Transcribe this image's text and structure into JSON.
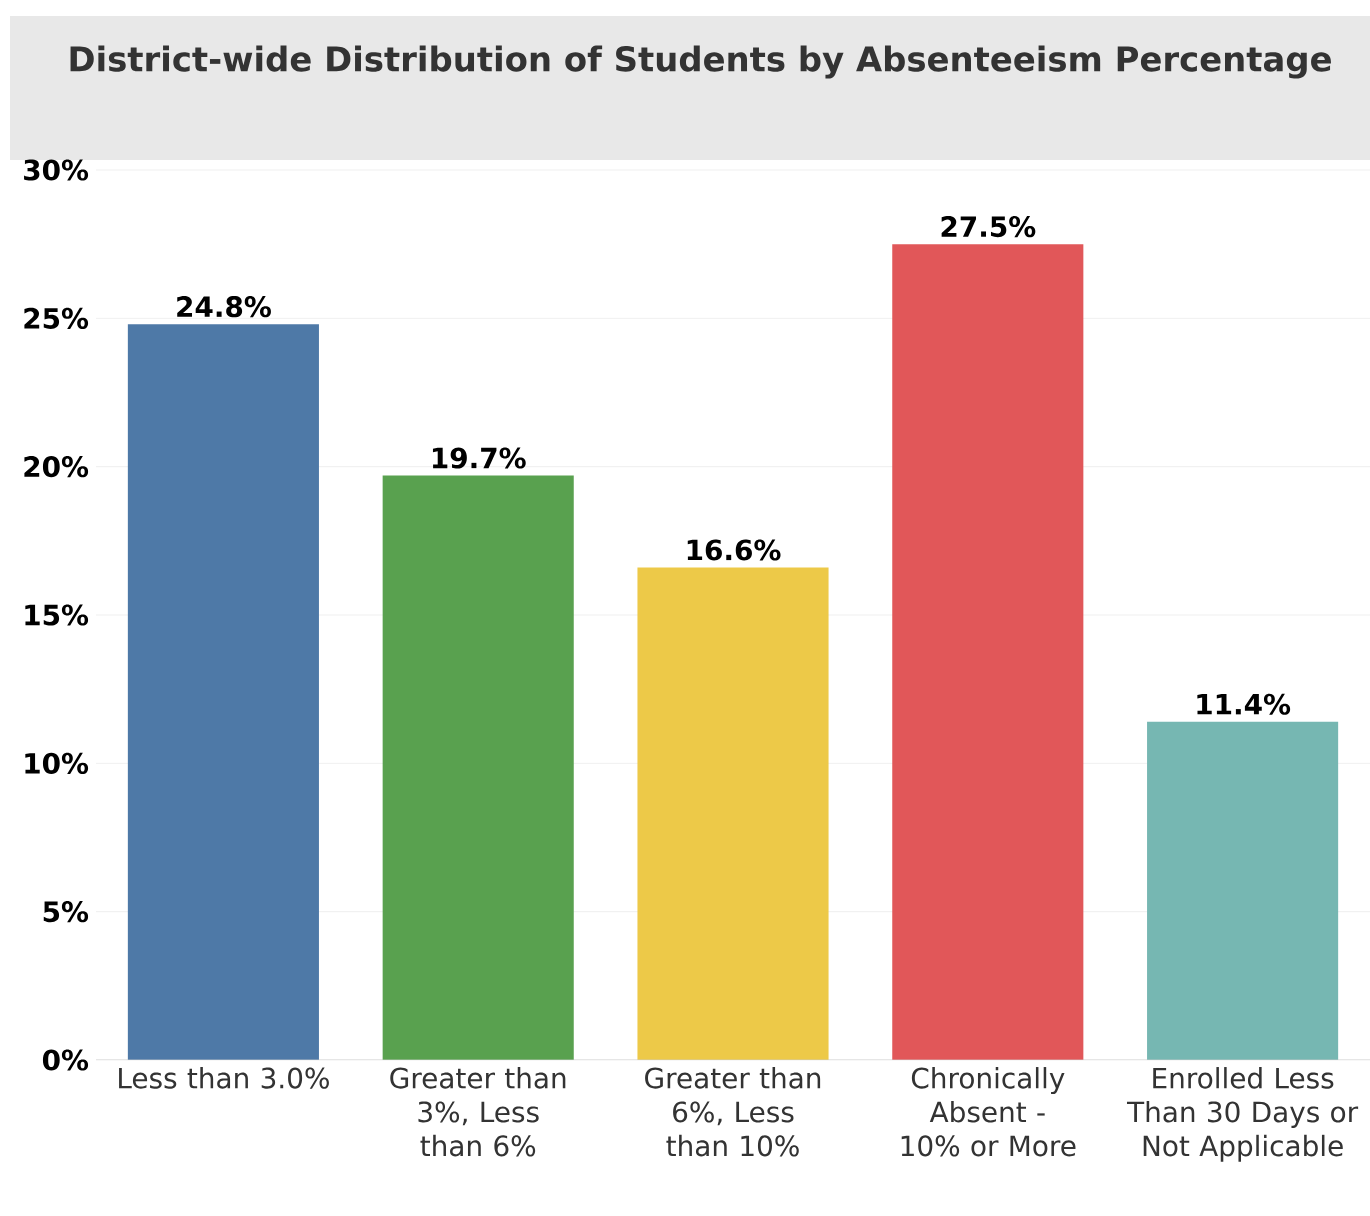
{
  "chart_data": {
    "type": "bar",
    "title": "District-wide Distribution of Students by Absenteeism Percentage",
    "categories": [
      "Less than 3.0%",
      "Greater than 3%, Less than 6%",
      "Greater than 6%, Less than 10%",
      "Chronically Absent - 10% or More",
      "Enrolled Less Than 30 Days or Not Applicable"
    ],
    "values": [
      24.8,
      19.7,
      16.6,
      27.5,
      11.4
    ],
    "value_labels": [
      "24.8%",
      "19.7%",
      "16.6%",
      "27.5%",
      "11.4%"
    ],
    "colors": [
      "#4e79a7",
      "#59a14f",
      "#edc948",
      "#e15759",
      "#76b7b2"
    ],
    "ylim": [
      0,
      30
    ],
    "yticks": [
      {
        "value": 0,
        "label": "0%"
      },
      {
        "value": 5,
        "label": "5%"
      },
      {
        "value": 10,
        "label": "10%"
      },
      {
        "value": 15,
        "label": "15%"
      },
      {
        "value": 20,
        "label": "20%"
      },
      {
        "value": 25,
        "label": "25%"
      },
      {
        "value": 30,
        "label": "30%"
      }
    ],
    "grid": "y"
  }
}
